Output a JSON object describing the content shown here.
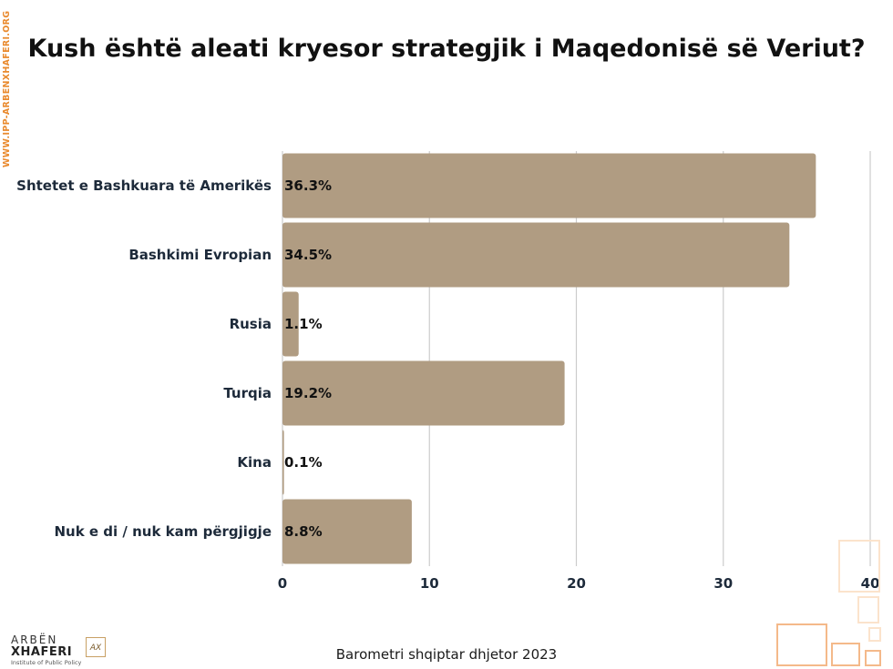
{
  "site_url": "WWW.IPP-ARBENXHAFERI.ORG",
  "title": "Kush është aleati kryesor strategjik i Maqedonisë së Veriut?",
  "footer": "Barometri shqiptar dhjetor 2023",
  "logo": {
    "line1": "ARBËN",
    "line2": "XHAFERI",
    "line3": "Institute of Public Policy",
    "mark": "AX"
  },
  "colors": {
    "bar": "#b09c82",
    "grid": "#cccccc",
    "label": "#1d2a3a",
    "deco_light": "#fbe3cc",
    "deco_dark": "#f4b98a"
  },
  "chart_data": {
    "type": "bar",
    "orientation": "horizontal",
    "categories": [
      "Shtetet e Bashkuara të Amerikës",
      "Bashkimi Evropian",
      "Rusia",
      "Turqia",
      "Kina",
      "Nuk e di / nuk kam përgjigje"
    ],
    "values": [
      36.3,
      34.5,
      1.1,
      19.2,
      0.1,
      8.8
    ],
    "data_labels": [
      "36.3%",
      "34.5%",
      "1.1%",
      "19.2%",
      "0.1%",
      "8.8%"
    ],
    "xlim": [
      0,
      40
    ],
    "xticks": [
      0,
      10,
      20,
      30,
      40
    ],
    "xtick_labels": [
      "0",
      "10",
      "20",
      "30",
      "40"
    ],
    "grid": true,
    "title": "Kush është aleati kryesor strategjik i Maqedonisë së Veriut?",
    "xlabel": "",
    "ylabel": ""
  }
}
